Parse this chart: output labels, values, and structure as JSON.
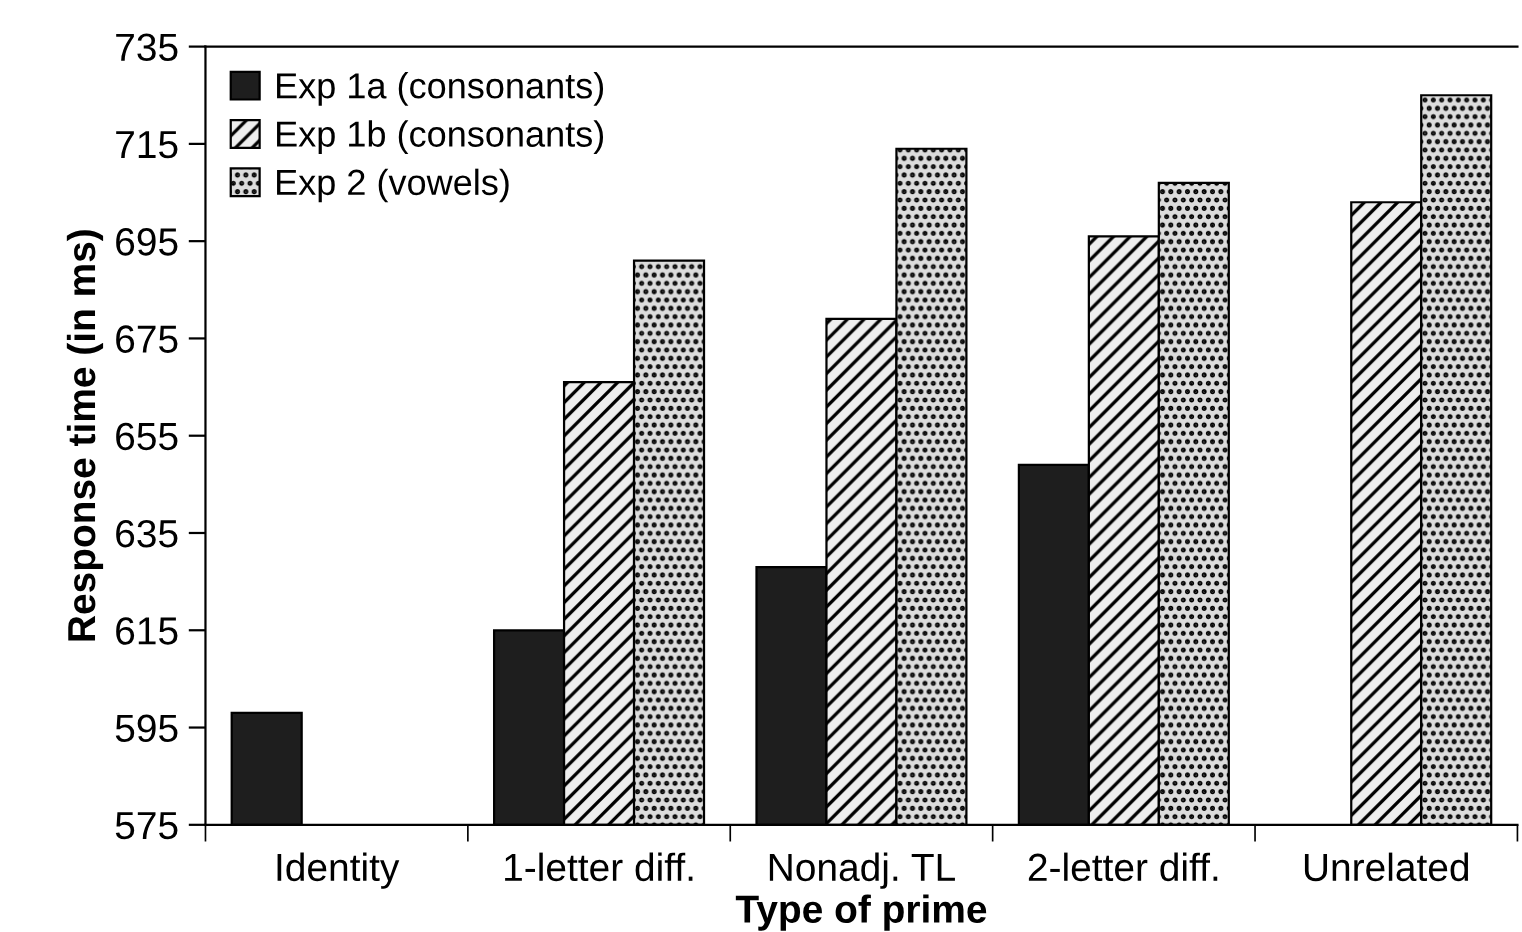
{
  "chart_data": {
    "type": "bar",
    "xlabel": "Type of prime",
    "ylabel": "Response time (in ms)",
    "categories": [
      "Identity",
      "1-letter diff.",
      "Nonadj. TL",
      "2-letter diff.",
      "Unrelated"
    ],
    "series": [
      {
        "name": "Exp 1a (consonants)",
        "color": "#1e1e1e",
        "values": [
          598,
          615,
          628,
          649,
          null
        ]
      },
      {
        "name": "Exp 1b (consonants)",
        "color": "#eeeeee",
        "values": [
          null,
          666,
          679,
          696,
          703
        ]
      },
      {
        "name": "Exp 2 (vowels)",
        "color": "#dcdcdc",
        "values": [
          null,
          691,
          714,
          707,
          725
        ]
      }
    ],
    "ylim": [
      575,
      735
    ],
    "yticks": [
      575,
      595,
      615,
      635,
      655,
      675,
      695,
      715,
      735
    ],
    "grid": false,
    "legend": "top left"
  }
}
